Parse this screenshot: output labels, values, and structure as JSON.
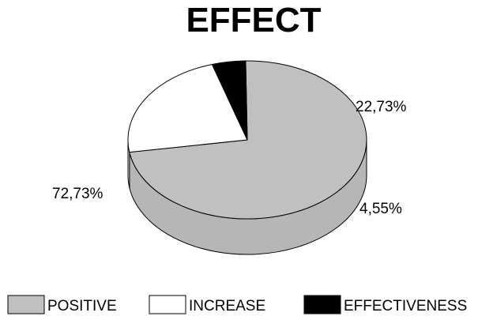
{
  "chart_data": {
    "type": "pie",
    "title": "EFFECT",
    "three_d": true,
    "legend_position": "bottom",
    "slices": [
      {
        "name": "POSITIVE",
        "value": 72.73,
        "label": "72,73%",
        "color": "#c0c0c0"
      },
      {
        "name": "INCREASE",
        "value": 22.73,
        "label": "22,73%",
        "color": "#ffffff"
      },
      {
        "name": "EFFECTIVENESS",
        "value": 4.55,
        "label": "4,55%",
        "color": "#000000"
      }
    ]
  }
}
